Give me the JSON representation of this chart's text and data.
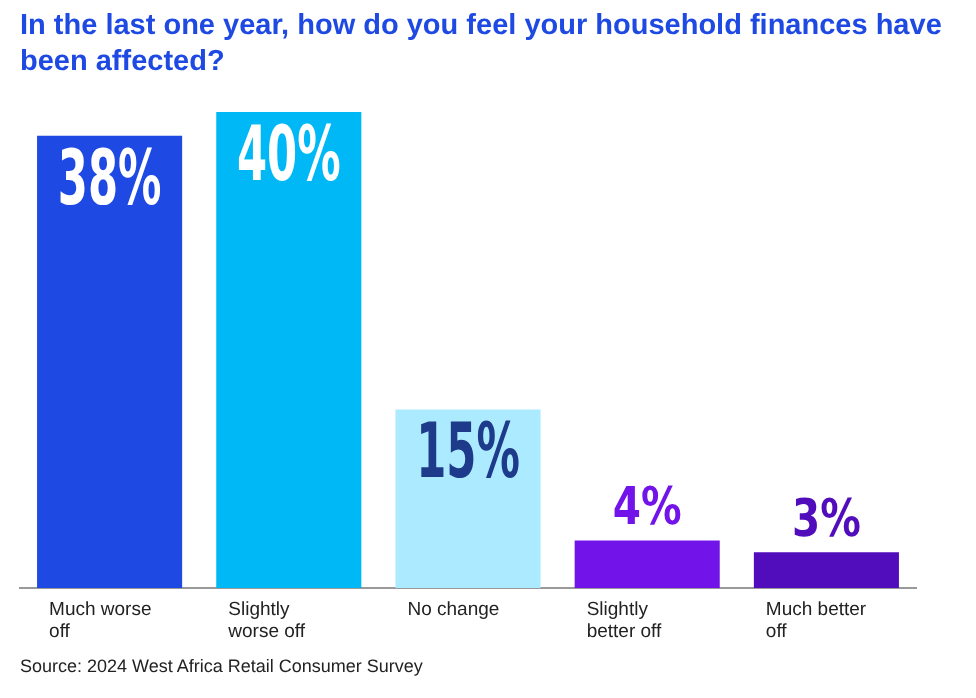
{
  "chart_data": {
    "type": "bar",
    "title": "In the last one year, how do you feel your household finances have been affected?",
    "categories": [
      "Much worse off",
      "Slightly worse off",
      "No change",
      "Slightly better off",
      "Much better off"
    ],
    "values": [
      38,
      40,
      15,
      4,
      3
    ],
    "colors": [
      "#1e49e2",
      "#00b8f5",
      "#acebff",
      "#7213ea",
      "#510dbc"
    ],
    "value_labels": [
      "38%",
      "40%",
      "15%",
      "4%",
      "3%"
    ],
    "grid": false,
    "legend": false,
    "annotations": [
      "Source: 2024 West Africa Retail Consumer Survey"
    ]
  }
}
